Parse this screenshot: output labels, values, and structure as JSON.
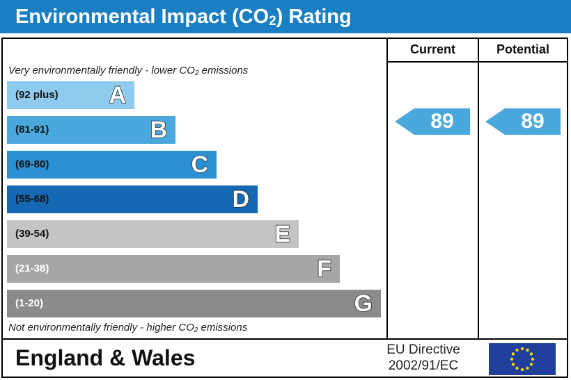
{
  "header": {
    "title": "Environmental Impact (CO",
    "title_sub": "2",
    "title_end": ") Rating"
  },
  "columns": {
    "current": "Current",
    "potential": "Potential"
  },
  "top_note": {
    "pre": "Very environmentally friendly - lower CO",
    "sub": "2",
    "post": " emissions"
  },
  "bottom_note": {
    "pre": "Not environmentally friendly - higher CO",
    "sub": "2",
    "post": " emissions"
  },
  "bands": [
    {
      "letter": "A",
      "range": "(92 plus)",
      "color": "#8ecbee",
      "range_color": "#111111"
    },
    {
      "letter": "B",
      "range": "(81-91)",
      "color": "#4ba8dc",
      "range_color": "#111111"
    },
    {
      "letter": "C",
      "range": "(69-80)",
      "color": "#2a90d2",
      "range_color": "#111111"
    },
    {
      "letter": "D",
      "range": "(55-68)",
      "color": "#1668b2",
      "range_color": "#111111"
    },
    {
      "letter": "E",
      "range": "(39-54)",
      "color": "#c4c4c4",
      "range_color": "#111111"
    },
    {
      "letter": "F",
      "range": "(21-38)",
      "color": "#a6a6a6",
      "range_color": "#ffffff"
    },
    {
      "letter": "G",
      "range": "(1-20)",
      "color": "#8b8b8b",
      "range_color": "#ffffff"
    }
  ],
  "current": {
    "value": "89",
    "color": "#4ba8dc"
  },
  "potential": {
    "value": "89",
    "color": "#4ba8dc"
  },
  "footer": {
    "region": "England & Wales",
    "eu_line1": "EU Directive",
    "eu_line2": "2002/91/EC"
  },
  "flag": {
    "icon": "eu-flag-icon",
    "background": "#1f3f9b",
    "star_color": "#f5d800"
  }
}
